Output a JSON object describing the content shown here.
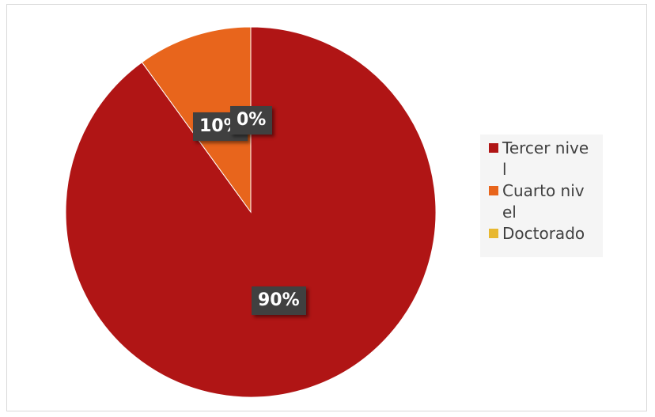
{
  "chart_data": {
    "type": "pie",
    "title": "",
    "categories": [
      "Tercer nivel",
      "Cuarto nivel",
      "Doctorado"
    ],
    "values": [
      90,
      10,
      0
    ],
    "data_labels": [
      "90%",
      "10%",
      "0%"
    ],
    "colors": [
      "#b01515",
      "#e8651c",
      "#e8b830"
    ],
    "legend": {
      "position": "right",
      "entries": [
        "Tercer nivel",
        "Cuarto nivel",
        "Doctorado"
      ]
    }
  }
}
